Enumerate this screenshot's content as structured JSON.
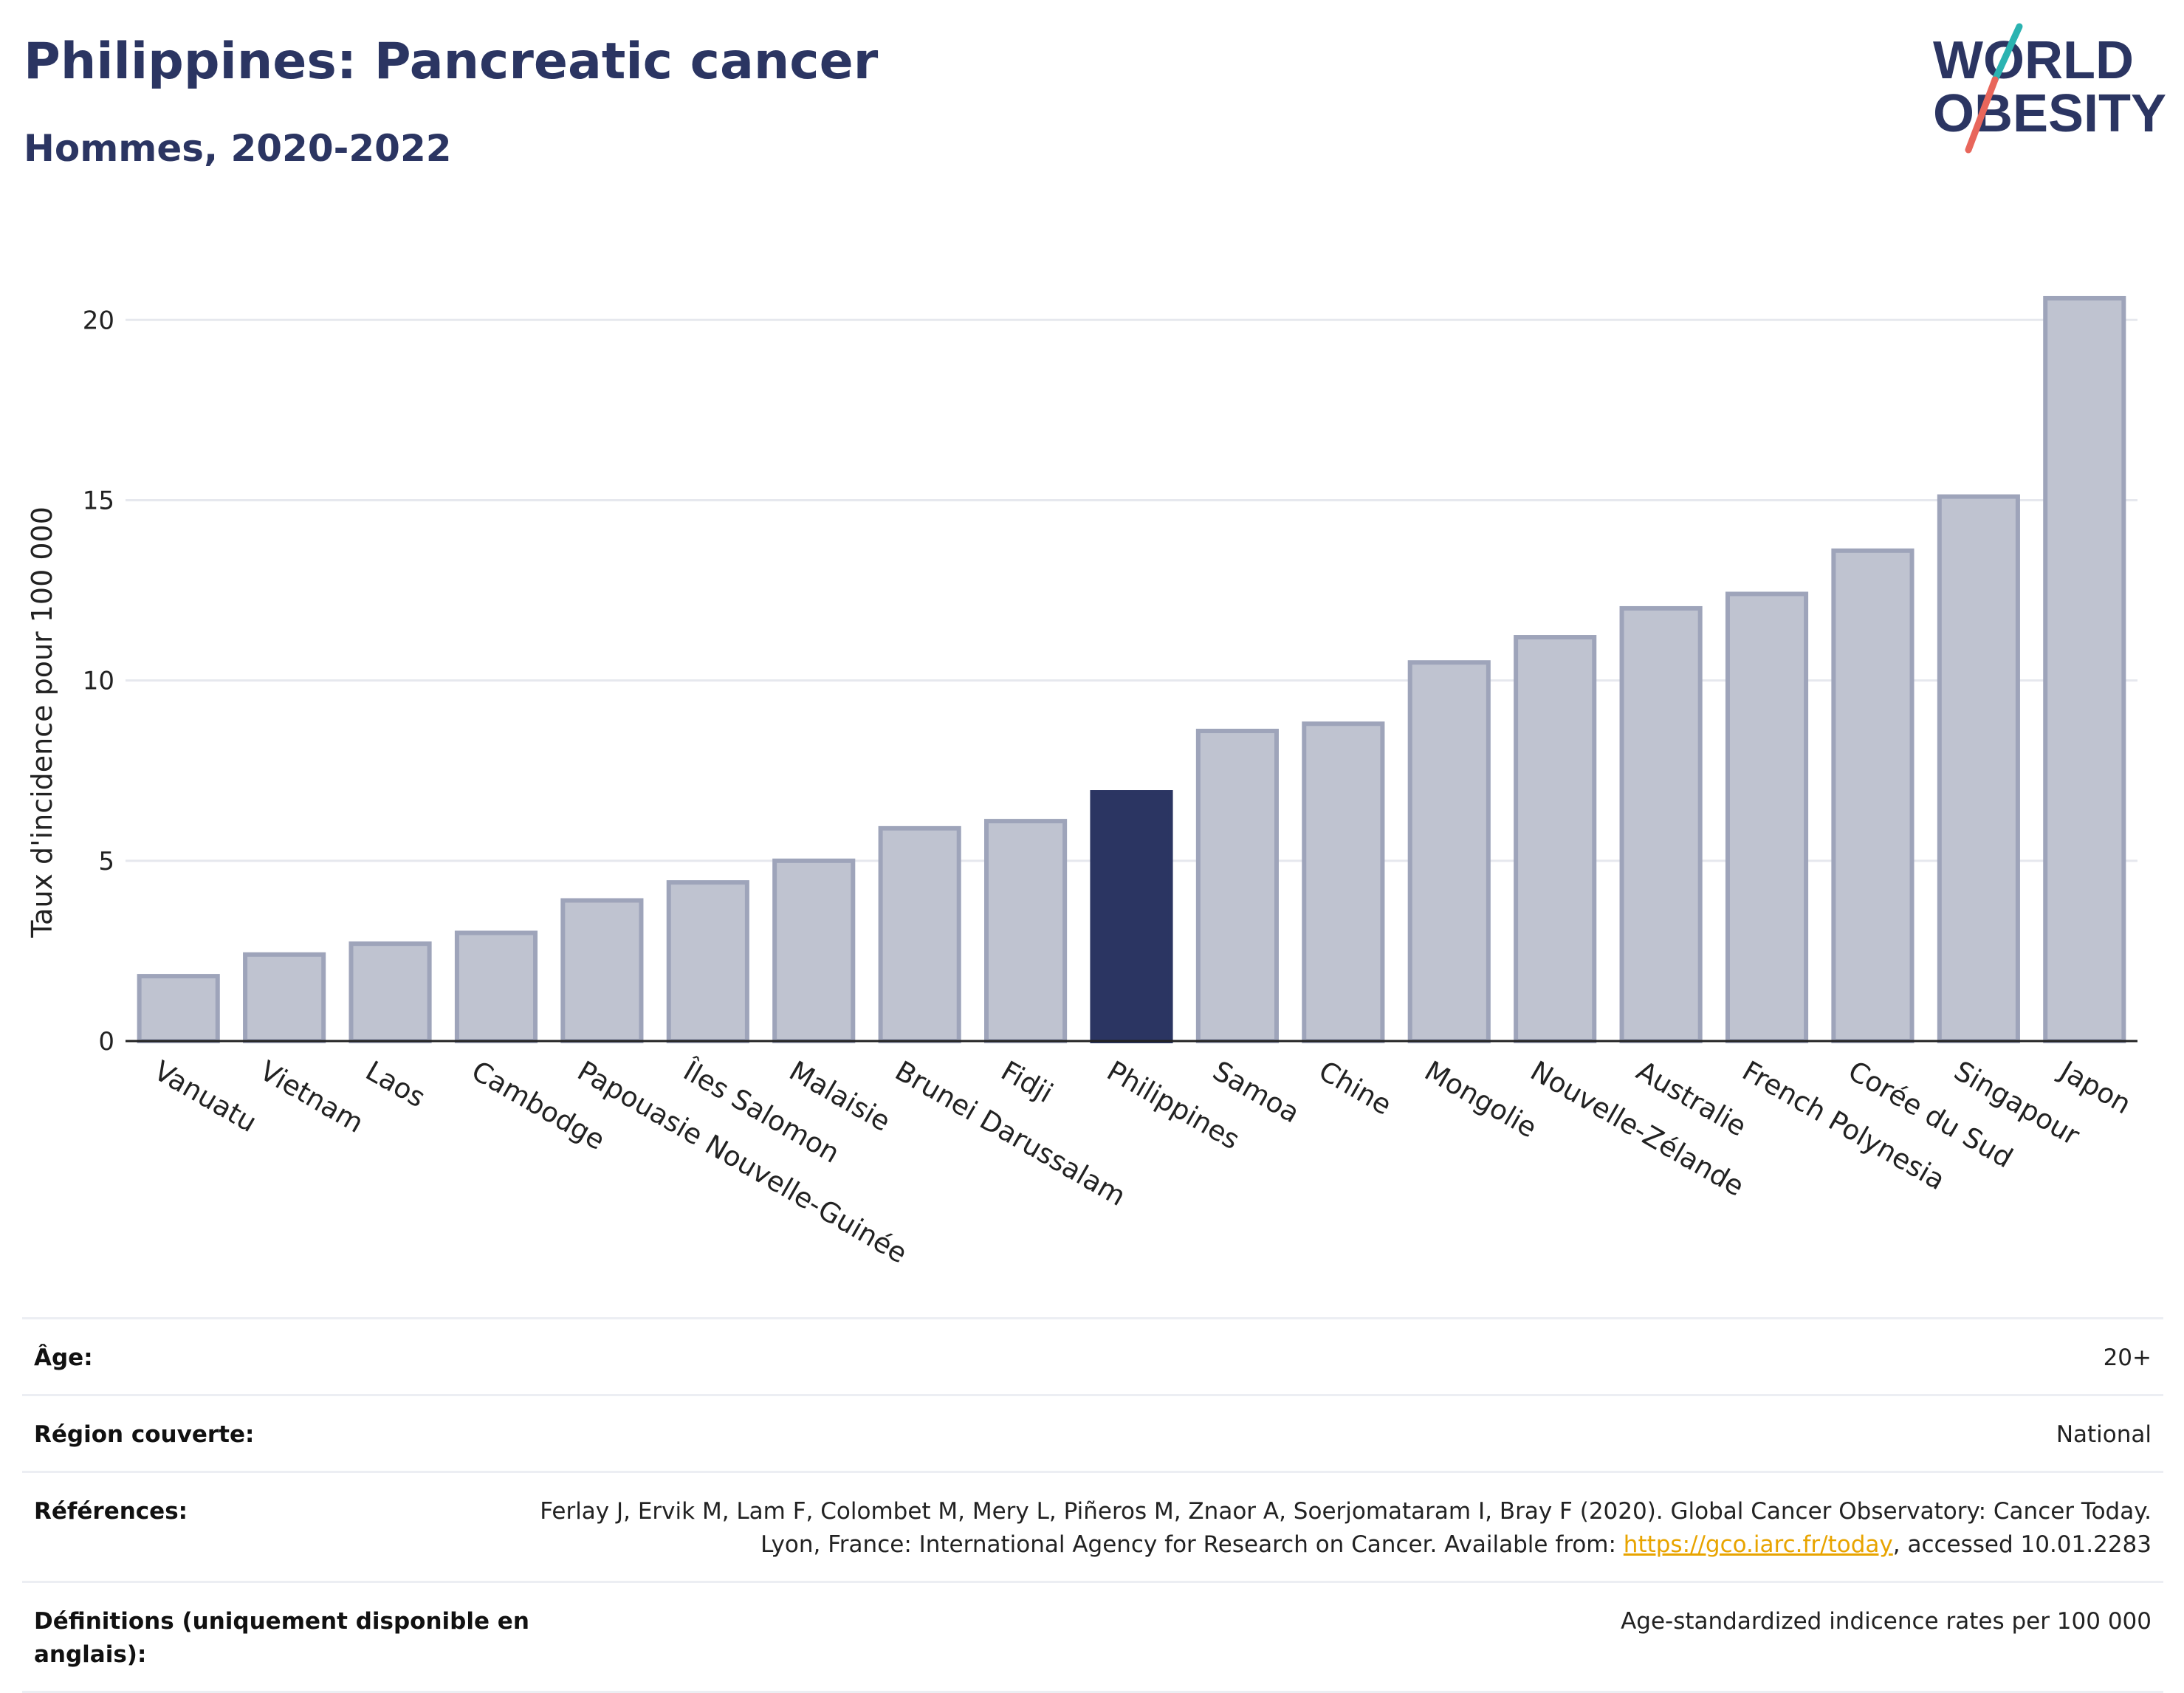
{
  "header": {
    "title": "Philippines: Pancreatic cancer",
    "subtitle": "Hommes, 2020-2022"
  },
  "logo": {
    "line1": "WORLD",
    "line2": "OBESITY",
    "colors": {
      "text": "#2b3562",
      "slash_teal": "#2bb3b1",
      "slash_red": "#e8665b"
    }
  },
  "chart_data": {
    "type": "bar",
    "title": "Philippines: Pancreatic cancer",
    "subtitle": "Hommes, 2020-2022",
    "ylabel": "Taux d'incidence pour 100 000",
    "xlabel": "",
    "ylim": [
      0,
      21.5
    ],
    "yticks": [
      0,
      5,
      10,
      15,
      20
    ],
    "grid": true,
    "highlight": "Philippines",
    "colors": {
      "bar": "#bfc3d0",
      "bar_edge": "#9ea4ba",
      "highlight": "#2b3562"
    },
    "categories": [
      "Vanuatu",
      "Vietnam",
      "Laos",
      "Cambodge",
      "Papouasie Nouvelle-Guinée",
      "Îles Salomon",
      "Malaisie",
      "Brunei Darussalam",
      "Fidji",
      "Philippines",
      "Samoa",
      "Chine",
      "Mongolie",
      "Nouvelle-Zélande",
      "Australie",
      "French Polynesia",
      "Corée du Sud",
      "Singapour",
      "Japon"
    ],
    "values": [
      1.8,
      2.4,
      2.7,
      3.0,
      3.9,
      4.4,
      5.0,
      5.9,
      6.1,
      6.9,
      8.6,
      8.8,
      10.5,
      11.2,
      12.0,
      12.4,
      13.6,
      15.1,
      20.6
    ]
  },
  "meta": [
    {
      "key": "Âge:",
      "value": "20+"
    },
    {
      "key": "Région couverte:",
      "value": "National"
    },
    {
      "key": "Références:",
      "value_before": "Ferlay J, Ervik M, Lam F, Colombet M, Mery L, Piñeros M, Znaor A, Soerjomataram I, Bray F (2020). Global Cancer Observatory: Cancer Today. Lyon, France: International Agency for Research on Cancer. Available from: ",
      "link": "https://gco.iarc.fr/today",
      "value_after": ", accessed 10.01.2283"
    },
    {
      "key": "Définitions (uniquement disponible en anglais):",
      "value": "Age-standardized indicence rates per 100 000"
    }
  ]
}
